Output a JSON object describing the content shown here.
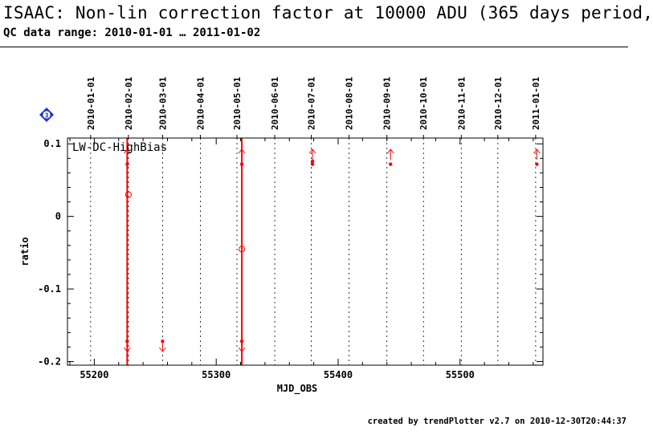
{
  "header": {
    "title": "ISAAC: Non-lin correction factor at 10000 ADU (365 days period,",
    "subtitle": "QC data range: 2010-01-01 … 2011-01-02"
  },
  "badge": {
    "label": "3",
    "color": "#1a33cc"
  },
  "footer": {
    "text": "created by trendPlotter v2.7 on 2010-12-30T20:44:37"
  },
  "colors": {
    "data": "#ff0000",
    "axis": "#000000"
  },
  "chart_data": {
    "type": "scatter",
    "panel_label": "LW-DC-HighBias",
    "xlabel": "MJD_OBS",
    "ylabel": "ratio",
    "xlim": [
      55178,
      55568
    ],
    "ylim": [
      -0.205,
      0.108
    ],
    "x_ticks": [
      55200,
      55300,
      55400,
      55500
    ],
    "y_ticks": [
      0.1,
      0,
      -0.1,
      -0.2
    ],
    "y_tick_labels": [
      "0.1",
      "0",
      "-0.1",
      "-0.2"
    ],
    "date_ticks": [
      {
        "label": "2010-01-01",
        "mjd": 55197
      },
      {
        "label": "2010-02-01",
        "mjd": 55228
      },
      {
        "label": "2010-03-01",
        "mjd": 55256
      },
      {
        "label": "2010-04-01",
        "mjd": 55287
      },
      {
        "label": "2010-05-01",
        "mjd": 55317
      },
      {
        "label": "2010-06-01",
        "mjd": 55348
      },
      {
        "label": "2010-07-01",
        "mjd": 55378
      },
      {
        "label": "2010-08-01",
        "mjd": 55409
      },
      {
        "label": "2010-09-01",
        "mjd": 55440
      },
      {
        "label": "2010-10-01",
        "mjd": 55470
      },
      {
        "label": "2010-11-01",
        "mjd": 55501
      },
      {
        "label": "2010-12-01",
        "mjd": 55531
      },
      {
        "label": "2011-01-01",
        "mjd": 55562
      }
    ],
    "vertical_lines": [
      55227,
      55321
    ],
    "points": [
      {
        "x": 55227,
        "y": 0.072
      },
      {
        "x": 55227,
        "y": -0.172
      },
      {
        "x": 55256,
        "y": -0.172
      },
      {
        "x": 55321,
        "y": 0.072
      },
      {
        "x": 55321,
        "y": -0.172
      },
      {
        "x": 55379,
        "y": 0.072
      },
      {
        "x": 55379,
        "y": 0.076
      },
      {
        "x": 55443,
        "y": 0.072
      },
      {
        "x": 55563,
        "y": 0.072
      }
    ],
    "averages": [
      {
        "x": 55228,
        "y": 0.03
      },
      {
        "x": 55321,
        "y": -0.045
      }
    ],
    "outliers_up": [
      55227,
      55321,
      55379,
      55443,
      55563
    ],
    "outliers_down": [
      55227,
      55256,
      55321
    ]
  }
}
